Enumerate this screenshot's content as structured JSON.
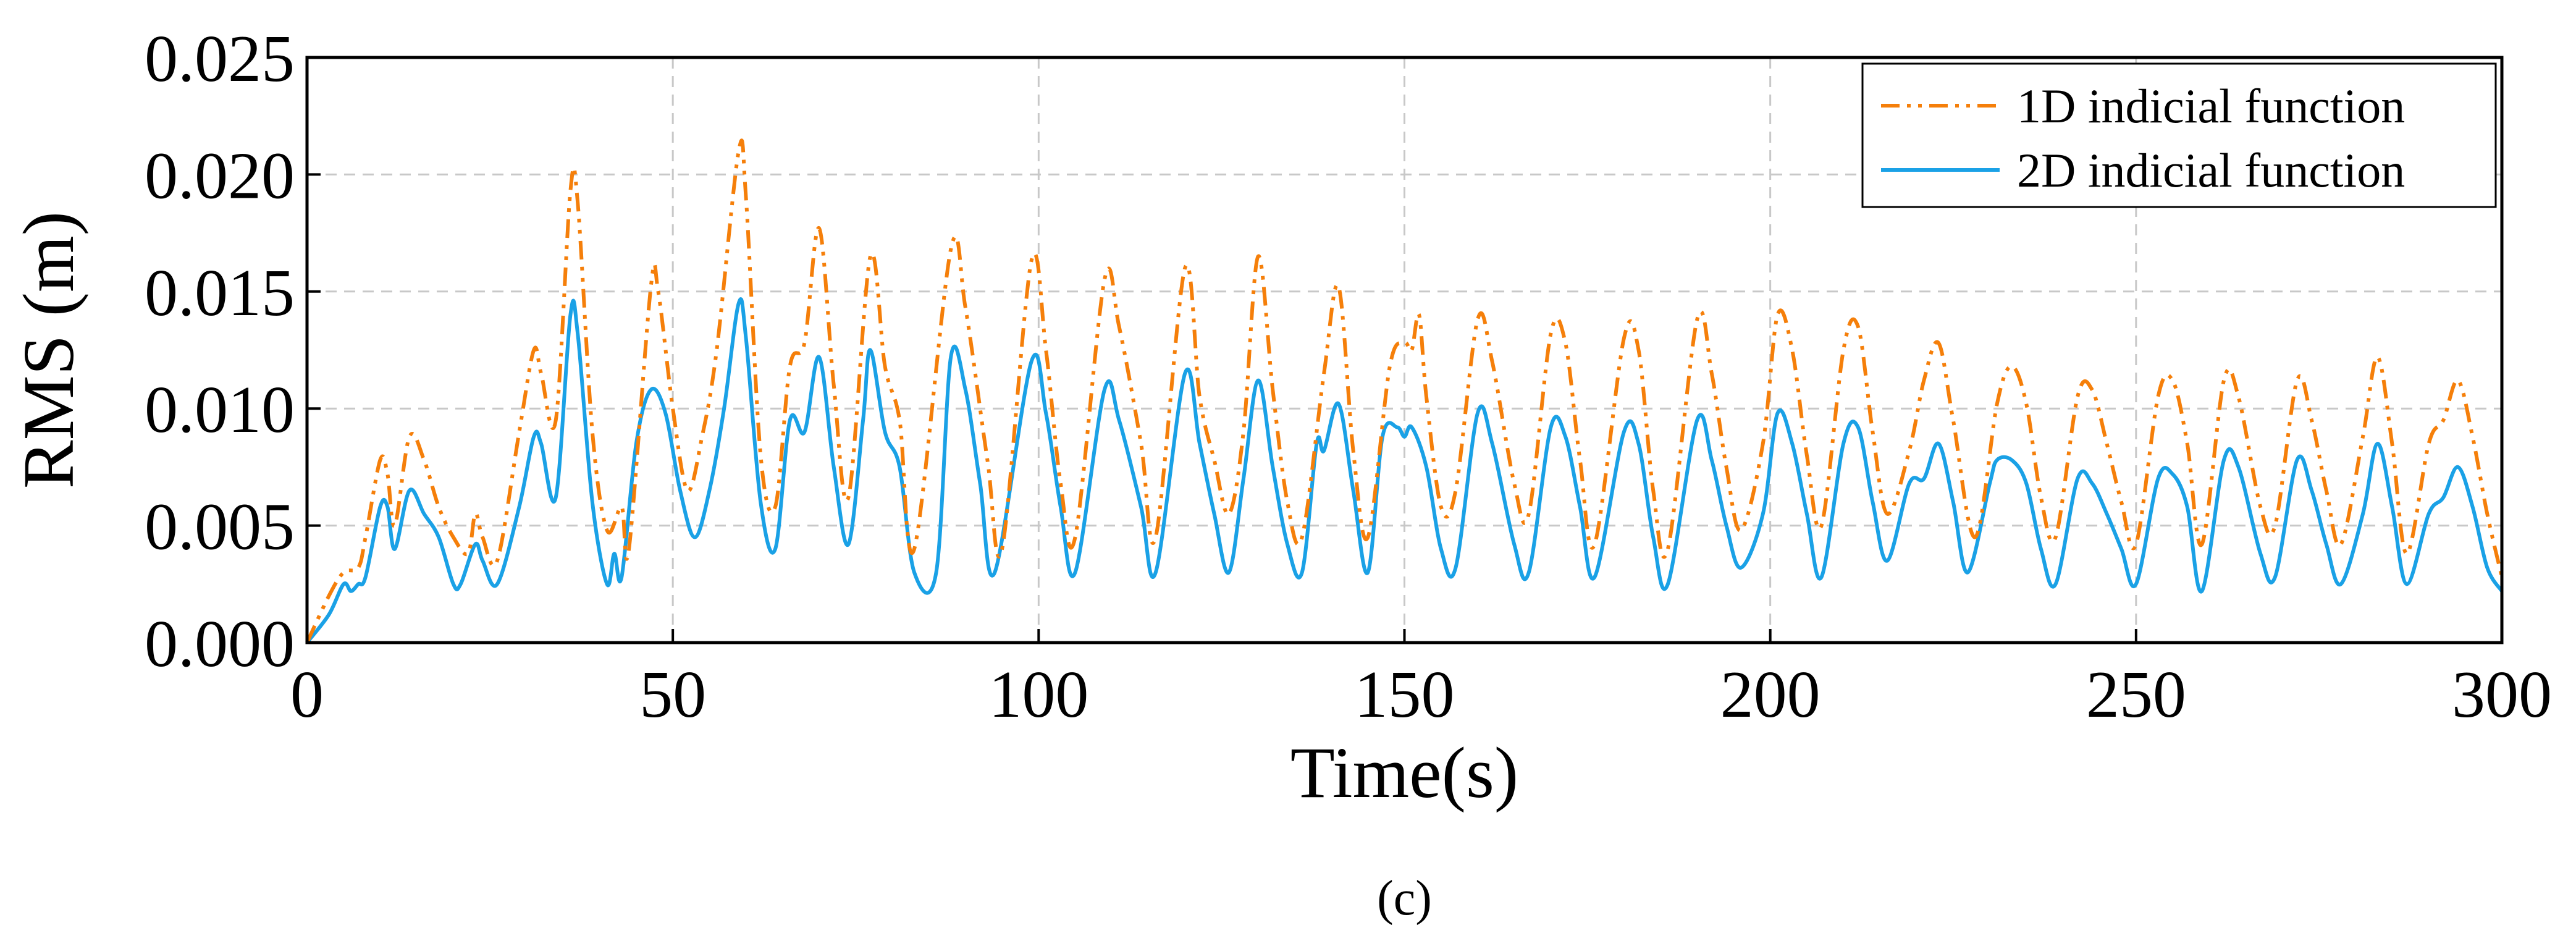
{
  "chart_data": {
    "type": "line",
    "title": "",
    "caption": "(c)",
    "xlabel": "Time(s)",
    "ylabel": "RMS (m)",
    "xlim": [
      0,
      300
    ],
    "ylim": [
      0,
      0.025
    ],
    "x_ticks": [
      {
        "value": 0,
        "label": "0"
      },
      {
        "value": 50,
        "label": "50"
      },
      {
        "value": 100,
        "label": "100"
      },
      {
        "value": 150,
        "label": "150"
      },
      {
        "value": 200,
        "label": "200"
      },
      {
        "value": 250,
        "label": "250"
      },
      {
        "value": 300,
        "label": "300"
      }
    ],
    "y_ticks": [
      {
        "value": 0,
        "label": "0.000"
      },
      {
        "value": 0.005,
        "label": "0.005"
      },
      {
        "value": 0.01,
        "label": "0.010"
      },
      {
        "value": 0.015,
        "label": "0.015"
      },
      {
        "value": 0.02,
        "label": "0.020"
      },
      {
        "value": 0.025,
        "label": "0.025"
      }
    ],
    "grid": true,
    "legend_position": "top-right",
    "series": [
      {
        "name": "1D indicial function",
        "color": "#F57F0A",
        "style": "dash-dot-dot",
        "points": [
          [
            0,
            0
          ],
          [
            3,
            0.002
          ],
          [
            5,
            0.003
          ],
          [
            7,
            0.0032
          ],
          [
            8,
            0.0045
          ],
          [
            10,
            0.0078
          ],
          [
            11,
            0.0072
          ],
          [
            12,
            0.005
          ],
          [
            14,
            0.0088
          ],
          [
            16,
            0.0078
          ],
          [
            18,
            0.0058
          ],
          [
            20,
            0.0045
          ],
          [
            22,
            0.0038
          ],
          [
            23,
            0.0055
          ],
          [
            24,
            0.0045
          ],
          [
            26,
            0.0035
          ],
          [
            29,
            0.009
          ],
          [
            31,
            0.0125
          ],
          [
            32,
            0.0115
          ],
          [
            34,
            0.0095
          ],
          [
            36,
            0.0193
          ],
          [
            37,
            0.0188
          ],
          [
            39,
            0.009
          ],
          [
            41,
            0.0048
          ],
          [
            43,
            0.0058
          ],
          [
            44,
            0.004
          ],
          [
            47,
            0.0152
          ],
          [
            48,
            0.015
          ],
          [
            50,
            0.01
          ],
          [
            52,
            0.0065
          ],
          [
            54,
            0.0088
          ],
          [
            56,
            0.0125
          ],
          [
            59,
            0.021
          ],
          [
            60,
            0.019
          ],
          [
            62,
            0.008
          ],
          [
            64,
            0.0058
          ],
          [
            66,
            0.0118
          ],
          [
            68,
            0.0128
          ],
          [
            70,
            0.0177
          ],
          [
            72,
            0.011
          ],
          [
            74,
            0.0062
          ],
          [
            77,
            0.0165
          ],
          [
            79,
            0.0118
          ],
          [
            81,
            0.0095
          ],
          [
            83,
            0.004
          ],
          [
            88,
            0.0168
          ],
          [
            90,
            0.0143
          ],
          [
            93,
            0.0078
          ],
          [
            95,
            0.004
          ],
          [
            99,
            0.0163
          ],
          [
            101,
            0.0125
          ],
          [
            103,
            0.0068
          ],
          [
            105,
            0.0045
          ],
          [
            109,
            0.0155
          ],
          [
            111,
            0.0135
          ],
          [
            114,
            0.0085
          ],
          [
            116,
            0.0045
          ],
          [
            120,
            0.016
          ],
          [
            122,
            0.0105
          ],
          [
            124,
            0.0078
          ],
          [
            126,
            0.0055
          ],
          [
            128,
            0.009
          ],
          [
            130,
            0.0165
          ],
          [
            132,
            0.0108
          ],
          [
            134,
            0.006
          ],
          [
            136,
            0.0045
          ],
          [
            139,
            0.0115
          ],
          [
            141,
            0.0152
          ],
          [
            143,
            0.0082
          ],
          [
            145,
            0.0045
          ],
          [
            148,
            0.0118
          ],
          [
            150,
            0.0128
          ],
          [
            151,
            0.0125
          ],
          [
            152,
            0.014
          ],
          [
            153,
            0.0105
          ],
          [
            155,
            0.0058
          ],
          [
            157,
            0.0065
          ],
          [
            160,
            0.0138
          ],
          [
            162,
            0.012
          ],
          [
            165,
            0.0068
          ],
          [
            167,
            0.0055
          ],
          [
            170,
            0.0132
          ],
          [
            172,
            0.0128
          ],
          [
            174,
            0.0078
          ],
          [
            176,
            0.0042
          ],
          [
            180,
            0.013
          ],
          [
            182,
            0.0125
          ],
          [
            184,
            0.0065
          ],
          [
            186,
            0.004
          ],
          [
            190,
            0.0138
          ],
          [
            192,
            0.0115
          ],
          [
            194,
            0.0075
          ],
          [
            196,
            0.0048
          ],
          [
            199,
            0.0085
          ],
          [
            201,
            0.014
          ],
          [
            203,
            0.0125
          ],
          [
            205,
            0.008
          ],
          [
            207,
            0.005
          ],
          [
            210,
            0.0125
          ],
          [
            212,
            0.0135
          ],
          [
            214,
            0.009
          ],
          [
            216,
            0.0055
          ],
          [
            219,
            0.0082
          ],
          [
            221,
            0.0112
          ],
          [
            223,
            0.0128
          ],
          [
            225,
            0.0095
          ],
          [
            228,
            0.0045
          ],
          [
            231,
            0.0102
          ],
          [
            233,
            0.0118
          ],
          [
            235,
            0.0102
          ],
          [
            237,
            0.0062
          ],
          [
            239,
            0.0045
          ],
          [
            242,
            0.0105
          ],
          [
            244,
            0.0108
          ],
          [
            246,
            0.0085
          ],
          [
            248,
            0.006
          ],
          [
            250,
            0.0042
          ],
          [
            253,
            0.0105
          ],
          [
            255,
            0.0112
          ],
          [
            257,
            0.0085
          ],
          [
            259,
            0.0042
          ],
          [
            262,
            0.0112
          ],
          [
            264,
            0.0105
          ],
          [
            267,
            0.0058
          ],
          [
            269,
            0.005
          ],
          [
            272,
            0.0112
          ],
          [
            274,
            0.0095
          ],
          [
            276,
            0.0065
          ],
          [
            278,
            0.0042
          ],
          [
            281,
            0.0088
          ],
          [
            283,
            0.0122
          ],
          [
            285,
            0.0085
          ],
          [
            287,
            0.0038
          ],
          [
            290,
            0.0085
          ],
          [
            292,
            0.0095
          ],
          [
            294,
            0.0112
          ],
          [
            296,
            0.0088
          ],
          [
            298,
            0.0055
          ],
          [
            300,
            0.0028
          ]
        ]
      },
      {
        "name": "2D indicial function",
        "color": "#1AA1E6",
        "style": "solid",
        "points": [
          [
            0,
            0
          ],
          [
            3,
            0.0012
          ],
          [
            5,
            0.0025
          ],
          [
            6,
            0.0022
          ],
          [
            7,
            0.0025
          ],
          [
            8,
            0.0028
          ],
          [
            10,
            0.0058
          ],
          [
            11,
            0.0058
          ],
          [
            12,
            0.004
          ],
          [
            14,
            0.0065
          ],
          [
            16,
            0.0055
          ],
          [
            18,
            0.0045
          ],
          [
            20,
            0.0025
          ],
          [
            21,
            0.0025
          ],
          [
            23,
            0.0042
          ],
          [
            24,
            0.0035
          ],
          [
            26,
            0.0025
          ],
          [
            29,
            0.0058
          ],
          [
            31,
            0.0088
          ],
          [
            32,
            0.0085
          ],
          [
            34,
            0.0062
          ],
          [
            36,
            0.014
          ],
          [
            37,
            0.0132
          ],
          [
            39,
            0.006
          ],
          [
            41,
            0.0025
          ],
          [
            42,
            0.0038
          ],
          [
            43,
            0.0028
          ],
          [
            45,
            0.0085
          ],
          [
            47,
            0.0108
          ],
          [
            49,
            0.0098
          ],
          [
            51,
            0.0065
          ],
          [
            53,
            0.0045
          ],
          [
            55,
            0.0065
          ],
          [
            57,
            0.01
          ],
          [
            59,
            0.0145
          ],
          [
            60,
            0.013
          ],
          [
            62,
            0.006
          ],
          [
            64,
            0.004
          ],
          [
            66,
            0.0095
          ],
          [
            68,
            0.009
          ],
          [
            70,
            0.0122
          ],
          [
            72,
            0.0075
          ],
          [
            74,
            0.0042
          ],
          [
            76,
            0.0095
          ],
          [
            77,
            0.0125
          ],
          [
            79,
            0.009
          ],
          [
            81,
            0.0075
          ],
          [
            83,
            0.003
          ],
          [
            86,
            0.003
          ],
          [
            88,
            0.0122
          ],
          [
            90,
            0.0108
          ],
          [
            92,
            0.0068
          ],
          [
            94,
            0.003
          ],
          [
            99,
            0.012
          ],
          [
            101,
            0.0098
          ],
          [
            103,
            0.0058
          ],
          [
            105,
            0.003
          ],
          [
            109,
            0.0108
          ],
          [
            111,
            0.0095
          ],
          [
            114,
            0.0058
          ],
          [
            116,
            0.003
          ],
          [
            120,
            0.0115
          ],
          [
            122,
            0.0085
          ],
          [
            124,
            0.0055
          ],
          [
            126,
            0.003
          ],
          [
            128,
            0.007
          ],
          [
            130,
            0.0112
          ],
          [
            132,
            0.0075
          ],
          [
            134,
            0.0042
          ],
          [
            136,
            0.003
          ],
          [
            138,
            0.0085
          ],
          [
            139,
            0.0082
          ],
          [
            141,
            0.0102
          ],
          [
            143,
            0.0065
          ],
          [
            145,
            0.003
          ],
          [
            147,
            0.0088
          ],
          [
            149,
            0.0092
          ],
          [
            150,
            0.0088
          ],
          [
            151,
            0.0092
          ],
          [
            153,
            0.0075
          ],
          [
            155,
            0.004
          ],
          [
            157,
            0.0032
          ],
          [
            160,
            0.0098
          ],
          [
            162,
            0.0085
          ],
          [
            165,
            0.0042
          ],
          [
            167,
            0.003
          ],
          [
            170,
            0.0092
          ],
          [
            172,
            0.0088
          ],
          [
            174,
            0.0058
          ],
          [
            176,
            0.0028
          ],
          [
            180,
            0.009
          ],
          [
            182,
            0.0085
          ],
          [
            184,
            0.0045
          ],
          [
            186,
            0.0025
          ],
          [
            190,
            0.0095
          ],
          [
            192,
            0.0078
          ],
          [
            194,
            0.005
          ],
          [
            196,
            0.0032
          ],
          [
            199,
            0.0055
          ],
          [
            201,
            0.0098
          ],
          [
            203,
            0.0085
          ],
          [
            205,
            0.0055
          ],
          [
            207,
            0.0028
          ],
          [
            210,
            0.0085
          ],
          [
            212,
            0.0092
          ],
          [
            214,
            0.006
          ],
          [
            216,
            0.0035
          ],
          [
            219,
            0.0068
          ],
          [
            221,
            0.007
          ],
          [
            223,
            0.0085
          ],
          [
            225,
            0.006
          ],
          [
            227,
            0.003
          ],
          [
            230,
            0.0068
          ],
          [
            231,
            0.0078
          ],
          [
            233,
            0.0078
          ],
          [
            235,
            0.0068
          ],
          [
            237,
            0.004
          ],
          [
            239,
            0.0025
          ],
          [
            242,
            0.007
          ],
          [
            244,
            0.0068
          ],
          [
            246,
            0.0055
          ],
          [
            248,
            0.004
          ],
          [
            250,
            0.0025
          ],
          [
            253,
            0.007
          ],
          [
            255,
            0.0072
          ],
          [
            257,
            0.0058
          ],
          [
            259,
            0.0022
          ],
          [
            262,
            0.0078
          ],
          [
            264,
            0.0075
          ],
          [
            267,
            0.0038
          ],
          [
            269,
            0.0028
          ],
          [
            272,
            0.0078
          ],
          [
            274,
            0.0065
          ],
          [
            276,
            0.0042
          ],
          [
            278,
            0.0025
          ],
          [
            281,
            0.0055
          ],
          [
            283,
            0.0085
          ],
          [
            285,
            0.0058
          ],
          [
            287,
            0.0025
          ],
          [
            290,
            0.0055
          ],
          [
            292,
            0.0062
          ],
          [
            294,
            0.0075
          ],
          [
            296,
            0.0058
          ],
          [
            298,
            0.0032
          ],
          [
            300,
            0.0022
          ]
        ]
      }
    ]
  }
}
